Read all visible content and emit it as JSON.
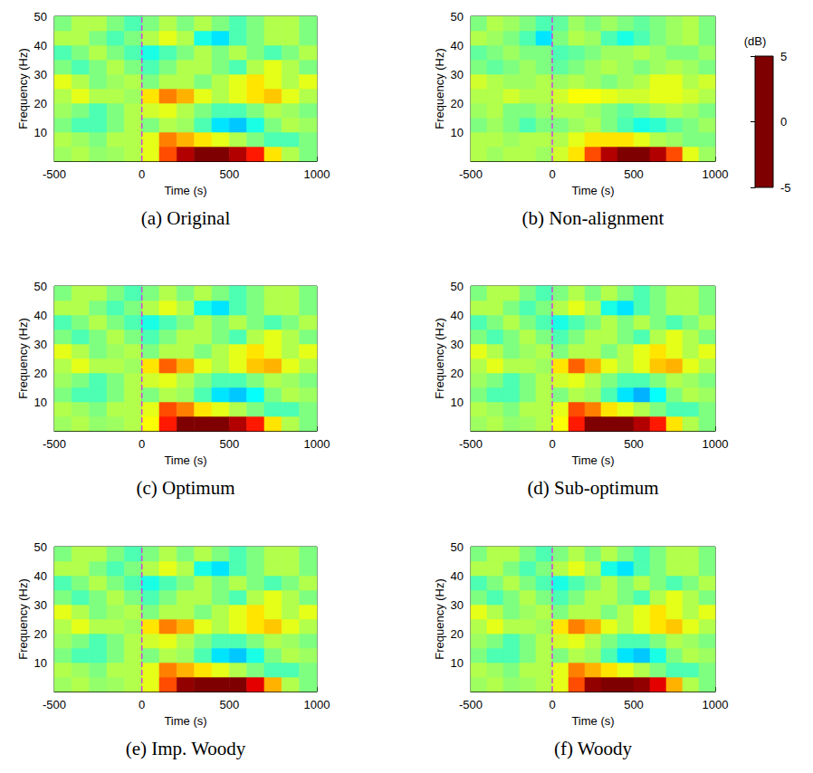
{
  "chart_data": {
    "type": "heatmap",
    "x_label": "Time (s)",
    "y_label": "Frequency (Hz)",
    "xlim": [
      -500,
      1000
    ],
    "ylim": [
      0,
      50
    ],
    "xticks": [
      -500,
      0,
      500,
      1000
    ],
    "yticks": [
      10,
      20,
      30,
      40,
      50
    ],
    "time_edges": [
      -500,
      -400,
      -300,
      -200,
      -100,
      0,
      100,
      200,
      300,
      400,
      500,
      600,
      700,
      800,
      900,
      1000
    ],
    "freq_edges": [
      0,
      5,
      10,
      15,
      20,
      25,
      30,
      35,
      40,
      45,
      50
    ],
    "event_time": 0,
    "colorbar": {
      "label": "(dB)",
      "range": [
        -5,
        5
      ],
      "ticks": [
        5,
        0,
        -5
      ]
    },
    "panels": [
      {
        "caption": "(a) Original",
        "cells": [
          [
            0.3,
            0.5,
            0.2,
            0.3,
            0.5,
            1,
            3,
            4.5,
            5,
            5,
            4.5,
            3.5,
            1.5,
            0.5,
            0
          ],
          [
            0.5,
            0.3,
            0,
            0.5,
            0.5,
            1,
            2.5,
            2,
            1.5,
            1,
            0.5,
            0,
            -0.5,
            -0.5,
            0
          ],
          [
            0,
            -0.5,
            -0.5,
            0,
            0.5,
            0,
            0.5,
            0.3,
            -0.5,
            -1.5,
            -1.8,
            -1,
            0,
            0.5,
            0.3
          ],
          [
            0.3,
            0,
            -0.5,
            0,
            0.5,
            0.8,
            1,
            0.5,
            0,
            -0.5,
            -0.5,
            0,
            0.5,
            0.3,
            0
          ],
          [
            0.5,
            1,
            0.5,
            0.5,
            0.3,
            1.5,
            2.5,
            2,
            1,
            0.5,
            1,
            1.5,
            1.8,
            1,
            0.5
          ],
          [
            1,
            0.5,
            0,
            0.3,
            0.5,
            0,
            0.5,
            0.5,
            0,
            0.5,
            1,
            1.5,
            1,
            0.5,
            1
          ],
          [
            0,
            -0.5,
            0,
            0.5,
            0,
            -0.5,
            0,
            0.5,
            0.5,
            0,
            -0.5,
            0.5,
            1,
            0.5,
            0
          ],
          [
            -0.5,
            0,
            0.5,
            0,
            -0.5,
            -1,
            -0.5,
            0,
            0.5,
            0,
            0.5,
            0,
            -0.5,
            0,
            0.5
          ],
          [
            0.5,
            0.5,
            0,
            -0.5,
            0,
            0.5,
            1,
            0.5,
            -1,
            -1.5,
            -0.5,
            0,
            0.5,
            0.5,
            0
          ],
          [
            0,
            0.5,
            0.5,
            0,
            -0.5,
            0,
            0.5,
            0,
            0.5,
            0,
            -0.5,
            0,
            0.5,
            0.5,
            0
          ]
        ]
      },
      {
        "caption": "(b) Non-alignment",
        "cells": [
          [
            0.5,
            0.3,
            0.5,
            0.5,
            0.3,
            0.8,
            1.5,
            3,
            4.5,
            5,
            5,
            4.5,
            3,
            1,
            0.3
          ],
          [
            0.5,
            0.5,
            0.3,
            0.5,
            0.5,
            0.5,
            1,
            1.5,
            1.5,
            1.5,
            1,
            0.5,
            0.3,
            0,
            0
          ],
          [
            0,
            0.3,
            0,
            -0.5,
            0,
            0,
            0.3,
            0.5,
            0,
            -0.5,
            -1,
            -0.8,
            -0.3,
            0,
            0.3
          ],
          [
            0.3,
            0.5,
            0,
            0,
            0.3,
            0.5,
            0.5,
            0.3,
            0,
            -0.3,
            0,
            0.3,
            0.5,
            0.3,
            0
          ],
          [
            0.5,
            0.5,
            0.8,
            0.5,
            0.5,
            0.8,
            1.2,
            1.2,
            1,
            0.8,
            0.8,
            1,
            1,
            0.8,
            0.5
          ],
          [
            0.8,
            0.5,
            0.3,
            0.3,
            0.5,
            0.3,
            0.5,
            0.3,
            0,
            0.3,
            0.5,
            1,
            1,
            0.5,
            0.8
          ],
          [
            0,
            -0.3,
            0,
            0.3,
            0,
            -0.3,
            0,
            0.3,
            0.5,
            0.3,
            0,
            0.3,
            0.5,
            0.3,
            0
          ],
          [
            -0.3,
            0,
            0.3,
            0,
            0,
            -0.5,
            -0.3,
            0,
            0.3,
            0.3,
            0.5,
            0.3,
            0,
            0,
            0.3
          ],
          [
            0.5,
            0.3,
            0,
            -0.5,
            -1.5,
            0,
            0.5,
            0.3,
            -0.5,
            -1,
            -0.5,
            0,
            0.3,
            0.5,
            0
          ],
          [
            0,
            0.5,
            0.3,
            0,
            -0.5,
            -0.3,
            0.3,
            0,
            0.3,
            0,
            -0.3,
            0,
            0.3,
            0.5,
            0
          ]
        ]
      },
      {
        "caption": "(c) Optimum",
        "cells": [
          [
            0.3,
            0.5,
            0.2,
            0.3,
            0.5,
            1.2,
            3.5,
            5,
            5,
            5,
            4.5,
            3.5,
            1.5,
            0.5,
            0
          ],
          [
            0.5,
            0.3,
            0,
            0.5,
            0.5,
            1,
            3,
            2.5,
            1.5,
            1,
            0.5,
            0,
            -0.5,
            -0.5,
            0
          ],
          [
            0,
            -0.5,
            -0.5,
            0,
            0.5,
            0,
            0.5,
            0.3,
            -0.5,
            -1.5,
            -1.8,
            -1.2,
            0,
            0.5,
            0.3
          ],
          [
            0.3,
            0,
            -0.5,
            0,
            0.5,
            0.8,
            1,
            0.5,
            0,
            -0.5,
            -0.5,
            0,
            0.5,
            0.3,
            0
          ],
          [
            0.5,
            1,
            0.5,
            0.5,
            0.3,
            1.5,
            2.8,
            2,
            1,
            0.5,
            1,
            1.8,
            2,
            1,
            0.5
          ],
          [
            1,
            0.5,
            0,
            0.3,
            0.5,
            0,
            0.5,
            0.5,
            0,
            0.5,
            1,
            1.5,
            1,
            0.5,
            1
          ],
          [
            0,
            -0.5,
            0,
            0.5,
            0,
            -0.5,
            0,
            0.5,
            0.5,
            0,
            -0.5,
            0.5,
            1,
            0.5,
            0
          ],
          [
            -0.5,
            0,
            0.5,
            0,
            -0.5,
            -1,
            -0.5,
            0,
            0.5,
            0,
            0.5,
            0,
            -0.5,
            0,
            0.5
          ],
          [
            0.5,
            0.5,
            0,
            -0.5,
            0,
            0.5,
            1,
            0.5,
            -1,
            -1.5,
            -0.5,
            0,
            0.5,
            0.5,
            0
          ],
          [
            0,
            0.5,
            0.5,
            0,
            -0.5,
            0,
            0.5,
            0,
            0.5,
            0,
            -0.5,
            0,
            0.5,
            0.5,
            0
          ]
        ]
      },
      {
        "caption": "(d) Sub-optimum",
        "cells": [
          [
            0.3,
            0.5,
            0.2,
            0.3,
            0.5,
            1.2,
            3.5,
            5,
            5,
            5,
            4.5,
            3.5,
            1.5,
            0.5,
            0
          ],
          [
            0.5,
            0.3,
            0,
            0.5,
            0.5,
            1,
            3,
            2.5,
            1.5,
            1,
            0.5,
            0,
            -0.5,
            -0.5,
            0
          ],
          [
            0,
            -0.5,
            -0.5,
            0,
            0.5,
            0,
            0.5,
            0.3,
            -0.5,
            -1.5,
            -2,
            -1.2,
            0,
            0.5,
            0.3
          ],
          [
            0.3,
            0,
            -0.5,
            0,
            0.5,
            0.8,
            1,
            0.5,
            0,
            -0.5,
            -0.5,
            0,
            0.5,
            0.3,
            0
          ],
          [
            0.5,
            1,
            0.5,
            0.5,
            0.3,
            1.5,
            2.8,
            2,
            1,
            0.5,
            1,
            1.8,
            2,
            1,
            0.5
          ],
          [
            1,
            0.5,
            0,
            0.3,
            0.5,
            0,
            0.5,
            0.5,
            0,
            0.5,
            1,
            1.5,
            1,
            0.5,
            1
          ],
          [
            0,
            -0.5,
            0,
            0.5,
            0,
            -0.5,
            0,
            0.5,
            0.5,
            0,
            -0.5,
            0.5,
            1,
            0.5,
            0
          ],
          [
            -0.5,
            0,
            0.5,
            0,
            -0.5,
            -1,
            -0.5,
            0,
            0.5,
            0,
            0.5,
            0,
            -0.5,
            0,
            0.5
          ],
          [
            0.5,
            0.5,
            0,
            -0.5,
            0,
            0.5,
            1,
            0.5,
            -1,
            -1.5,
            -0.5,
            0,
            0.5,
            0.5,
            0
          ],
          [
            0,
            0.5,
            0.5,
            0,
            -0.5,
            0,
            0.5,
            0,
            0.5,
            0,
            -0.5,
            0,
            0.5,
            0.5,
            0
          ]
        ]
      },
      {
        "caption": "(e) Imp. Woody",
        "cells": [
          [
            0.3,
            0.5,
            0.2,
            0.3,
            0.5,
            1,
            3,
            4.8,
            5,
            5,
            5,
            4,
            2,
            0.5,
            0
          ],
          [
            0.5,
            0.3,
            0,
            0.5,
            0.5,
            1,
            2.5,
            2,
            1.5,
            1,
            0.5,
            0,
            -0.5,
            -0.5,
            0
          ],
          [
            0,
            -0.5,
            -0.5,
            0,
            0.5,
            0,
            0.5,
            0.3,
            -0.5,
            -1.5,
            -1.8,
            -1,
            0,
            0.5,
            0.3
          ],
          [
            0.3,
            0,
            -0.5,
            0,
            0.5,
            0.8,
            1,
            0.5,
            0,
            -0.5,
            -0.5,
            0,
            0.5,
            0.3,
            0
          ],
          [
            0.5,
            1,
            0.5,
            0.5,
            0.3,
            1.5,
            2.5,
            2,
            1,
            0.5,
            1,
            1.5,
            1.8,
            1,
            0.5
          ],
          [
            1,
            0.5,
            0,
            0.3,
            0.5,
            0,
            0.5,
            0.5,
            0,
            0.5,
            1,
            1.5,
            1,
            0.5,
            1
          ],
          [
            0,
            -0.5,
            0,
            0.5,
            0,
            -0.5,
            0,
            0.5,
            0.5,
            0,
            -0.5,
            0.5,
            1,
            0.5,
            0
          ],
          [
            -0.5,
            0,
            0.5,
            0,
            -0.5,
            -1,
            -0.5,
            0,
            0.5,
            0,
            0.5,
            0,
            -0.5,
            0,
            0.5
          ],
          [
            0.5,
            0.5,
            0,
            -0.5,
            0,
            0.5,
            1,
            0.5,
            -1,
            -1.5,
            -0.5,
            0,
            0.5,
            0.5,
            0
          ],
          [
            0,
            0.5,
            0.5,
            0,
            -0.5,
            0,
            0.5,
            0,
            0.5,
            0,
            -0.5,
            0,
            0.5,
            0.5,
            0
          ]
        ]
      },
      {
        "caption": "(f) Woody",
        "cells": [
          [
            0.3,
            0.5,
            0.2,
            0.3,
            0.5,
            1,
            3,
            4.8,
            5,
            5,
            4.8,
            4,
            2,
            0.5,
            0
          ],
          [
            0.5,
            0.3,
            0,
            0.5,
            0.5,
            1,
            2.5,
            2,
            1.5,
            1,
            0.5,
            0,
            -0.5,
            -0.5,
            0
          ],
          [
            0,
            -0.5,
            -0.5,
            0,
            0.5,
            0,
            0.5,
            0.3,
            -0.5,
            -1.5,
            -1.8,
            -1,
            0,
            0.5,
            0.3
          ],
          [
            0.3,
            0,
            -0.5,
            0,
            0.5,
            0.8,
            1,
            0.5,
            0,
            -0.5,
            -0.5,
            0,
            0.5,
            0.3,
            0
          ],
          [
            0.5,
            1,
            0.5,
            0.5,
            0.3,
            1.5,
            2.5,
            2,
            1,
            0.5,
            1,
            1.5,
            1.8,
            1,
            0.5
          ],
          [
            1,
            0.5,
            0,
            0.3,
            0.5,
            0,
            0.5,
            0.5,
            0,
            0.5,
            1,
            1.5,
            1,
            0.5,
            1
          ],
          [
            0,
            -0.5,
            0,
            0.5,
            0,
            -0.5,
            0,
            0.5,
            0.5,
            0,
            -0.5,
            0.5,
            1,
            0.5,
            0
          ],
          [
            -0.5,
            0,
            0.5,
            0,
            -0.5,
            -1,
            -0.5,
            0,
            0.5,
            0,
            0.5,
            0,
            -0.5,
            0,
            0.5
          ],
          [
            0.5,
            0.5,
            0,
            -0.5,
            0,
            0.5,
            1,
            0.5,
            -1,
            -1.5,
            -0.5,
            0,
            0.5,
            0.5,
            0
          ],
          [
            0,
            0.5,
            0.5,
            0,
            -0.5,
            0,
            0.5,
            0,
            0.5,
            0,
            -0.5,
            0,
            0.5,
            0.5,
            0
          ]
        ]
      }
    ]
  }
}
